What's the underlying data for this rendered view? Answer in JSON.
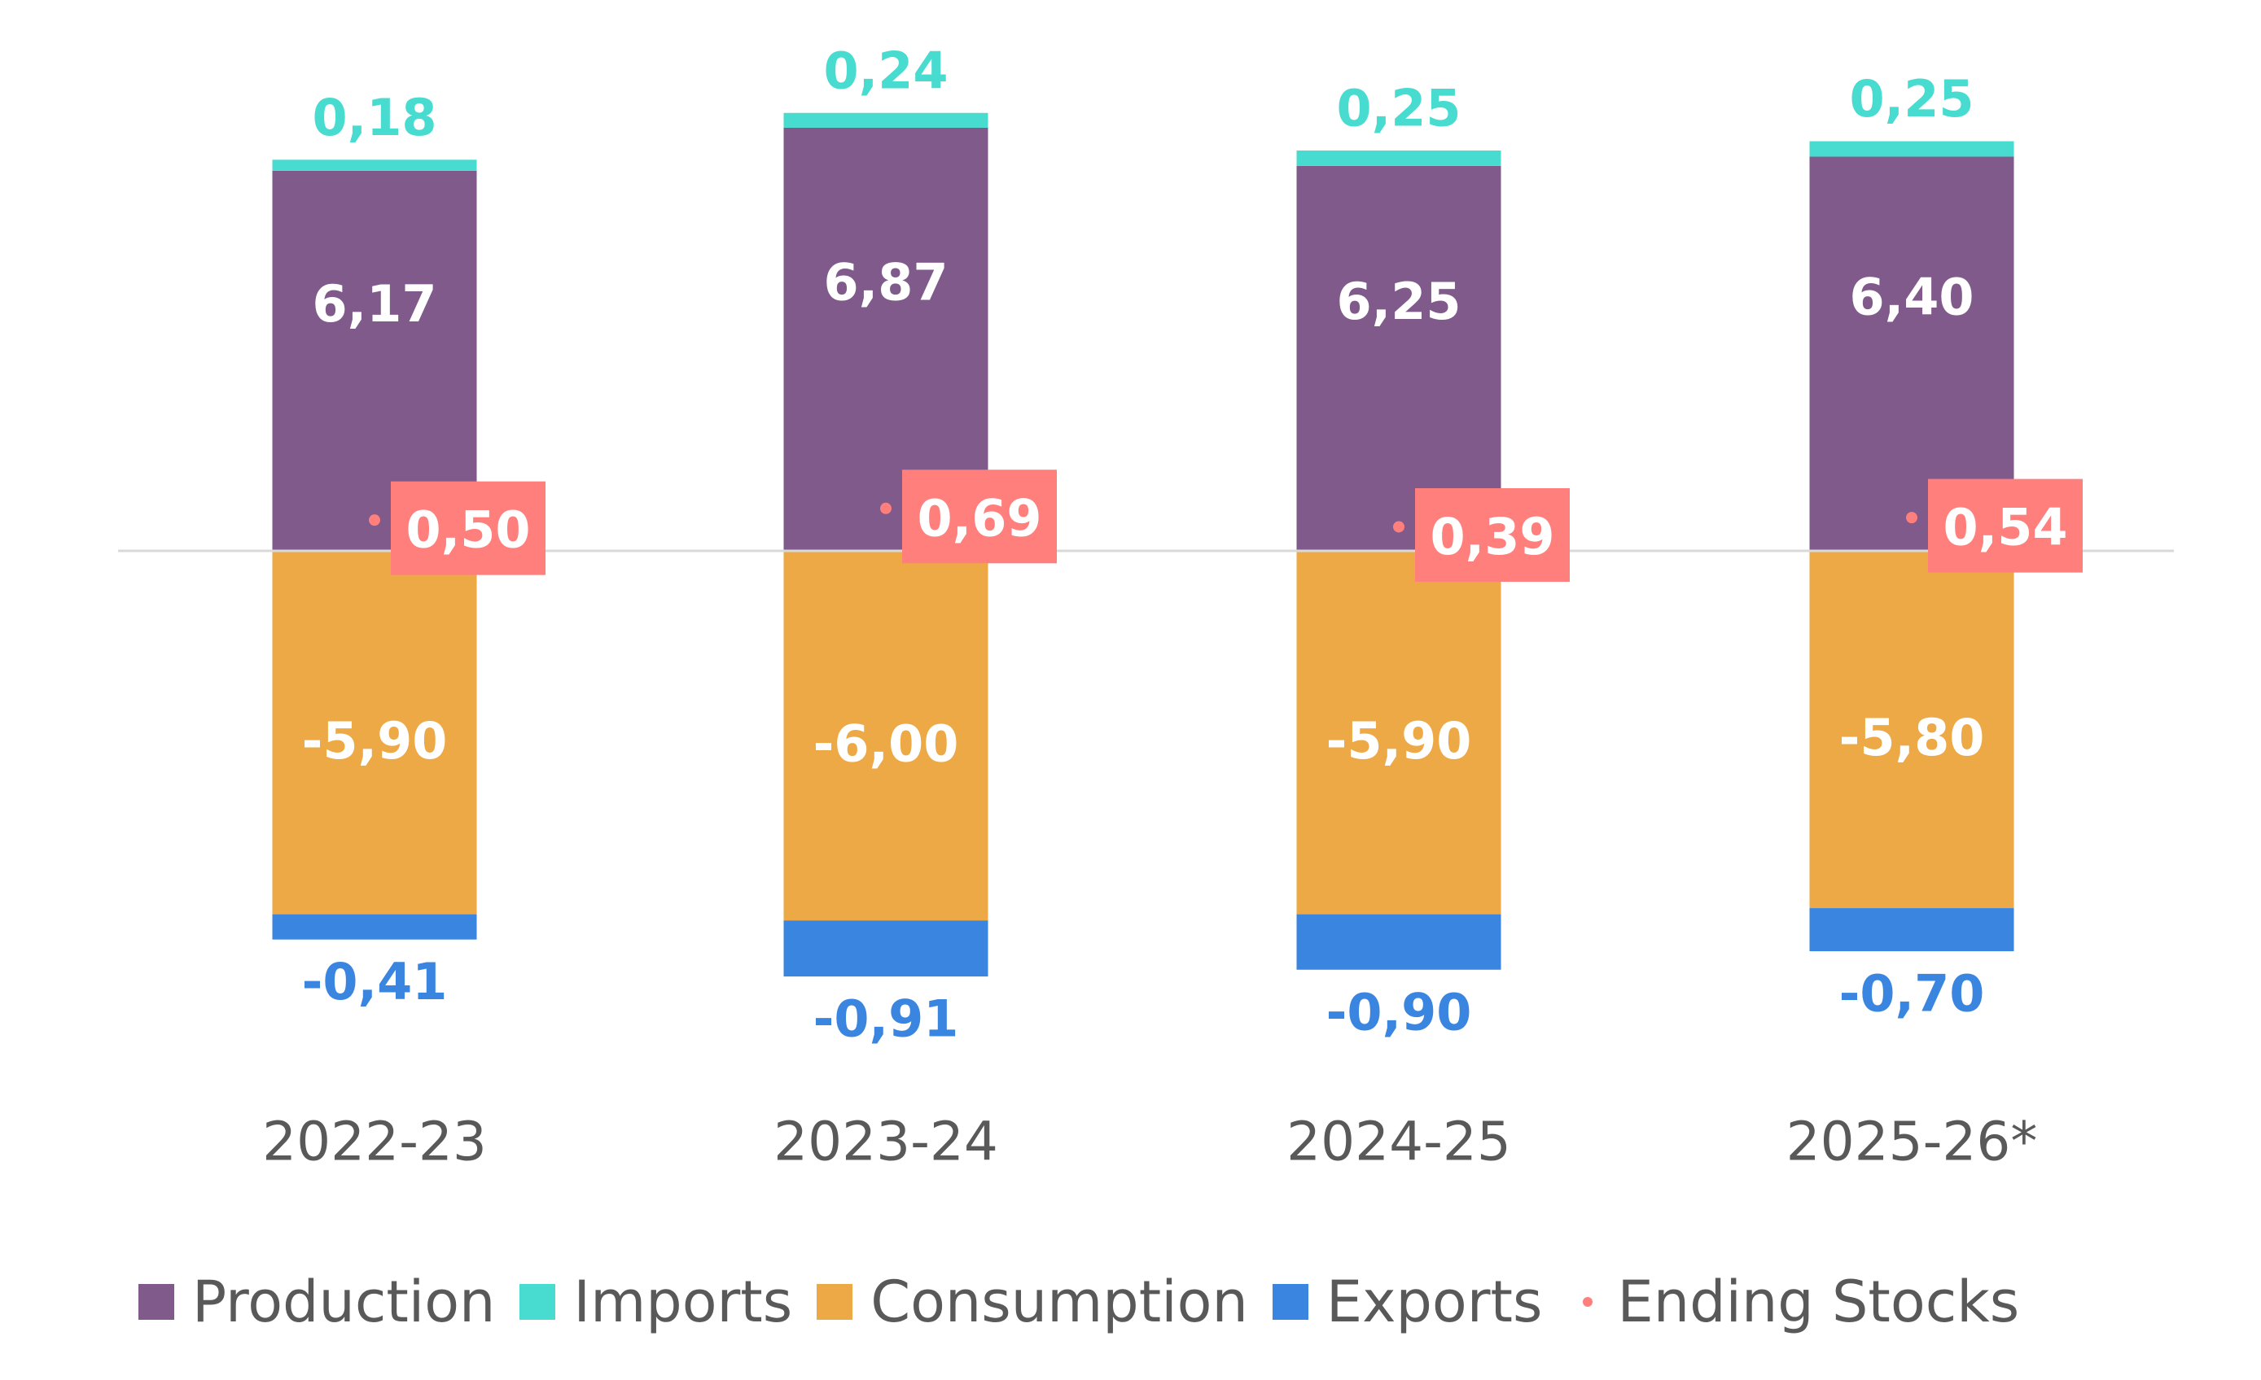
{
  "chart_data": {
    "type": "bar",
    "stacked": true,
    "title": "",
    "xlabel": "",
    "ylabel": "",
    "categories": [
      "2022-23",
      "2023-24",
      "2024-25",
      "2025-26*"
    ],
    "series": [
      {
        "name": "Production",
        "color": "#7F5A8B",
        "values": [
          6.17,
          6.87,
          6.25,
          6.4
        ],
        "labels": [
          "6,17",
          "6,87",
          "6,25",
          "6,40"
        ],
        "label_color": "#FFFFFF"
      },
      {
        "name": "Imports",
        "color": "#48DBD0",
        "values": [
          0.18,
          0.24,
          0.25,
          0.25
        ],
        "labels": [
          "0,18",
          "0,24",
          "0,25",
          "0,25"
        ],
        "label_color": "#48DBD0"
      },
      {
        "name": "Consumption",
        "color": "#ECA945",
        "values": [
          -5.9,
          -6.0,
          -5.9,
          -5.8
        ],
        "labels": [
          "-5,90",
          "-6,00",
          "-5,90",
          "-5,80"
        ],
        "label_color": "#FFFFFF"
      },
      {
        "name": "Exports",
        "color": "#3A85E0",
        "values": [
          -0.41,
          -0.91,
          -0.9,
          -0.7
        ],
        "labels": [
          "-0,41",
          "-0,91",
          "-0,90",
          "-0,70"
        ],
        "label_color": "#3A85E0"
      },
      {
        "name": "Ending Stocks",
        "type": "scatter",
        "color": "#FF7F7D",
        "values": [
          0.5,
          0.69,
          0.39,
          0.54
        ],
        "labels": [
          "0,50",
          "0,69",
          "0,39",
          "0,54"
        ],
        "label_color": "#FFFFFF"
      }
    ],
    "zero_line": true,
    "zero_line_color": "#D9D9D9",
    "grid": false,
    "legend_position": "bottom",
    "ylim": [
      -7.2,
      7.4
    ]
  },
  "legend": [
    {
      "label": "Production",
      "color": "#7F5A8B",
      "marker": "square"
    },
    {
      "label": "Imports",
      "color": "#48DBD0",
      "marker": "square"
    },
    {
      "label": "Consumption",
      "color": "#ECA945",
      "marker": "square"
    },
    {
      "label": "Exports",
      "color": "#3A85E0",
      "marker": "square"
    },
    {
      "label": "Ending Stocks",
      "color": "#FF7F7D",
      "marker": "dot"
    }
  ],
  "axis_label_color": "#595959"
}
